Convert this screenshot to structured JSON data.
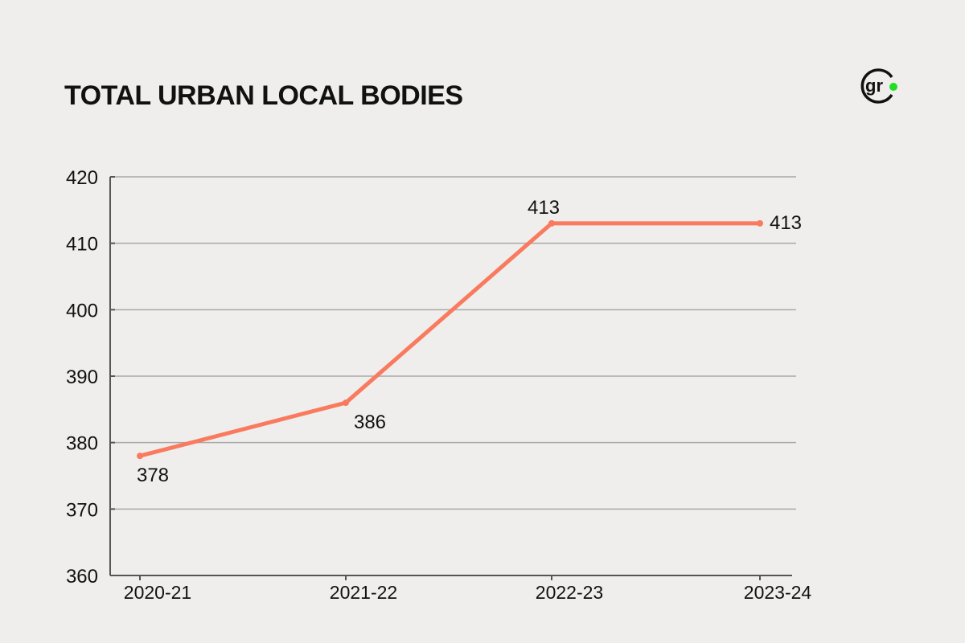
{
  "title": "TOTAL URBAN LOCAL BODIES",
  "logo_text": "gr",
  "colors": {
    "line": "#f97a5f",
    "grid": "#a8a8a8",
    "axis": "#555555",
    "logo_dot": "#22dd22",
    "background": "#efeeec"
  },
  "chart_data": {
    "type": "line",
    "title": "TOTAL URBAN LOCAL BODIES",
    "categories": [
      "2020-21",
      "2021-22",
      "2022-23",
      "2023-24"
    ],
    "values": [
      378,
      386,
      413,
      413
    ],
    "data_labels": [
      "378",
      "386",
      "413",
      "413"
    ],
    "ylim": [
      360,
      420
    ],
    "yticks": [
      "360",
      "370",
      "380",
      "390",
      "400",
      "410",
      "420"
    ],
    "grid": true,
    "xlabel": "",
    "ylabel": ""
  }
}
